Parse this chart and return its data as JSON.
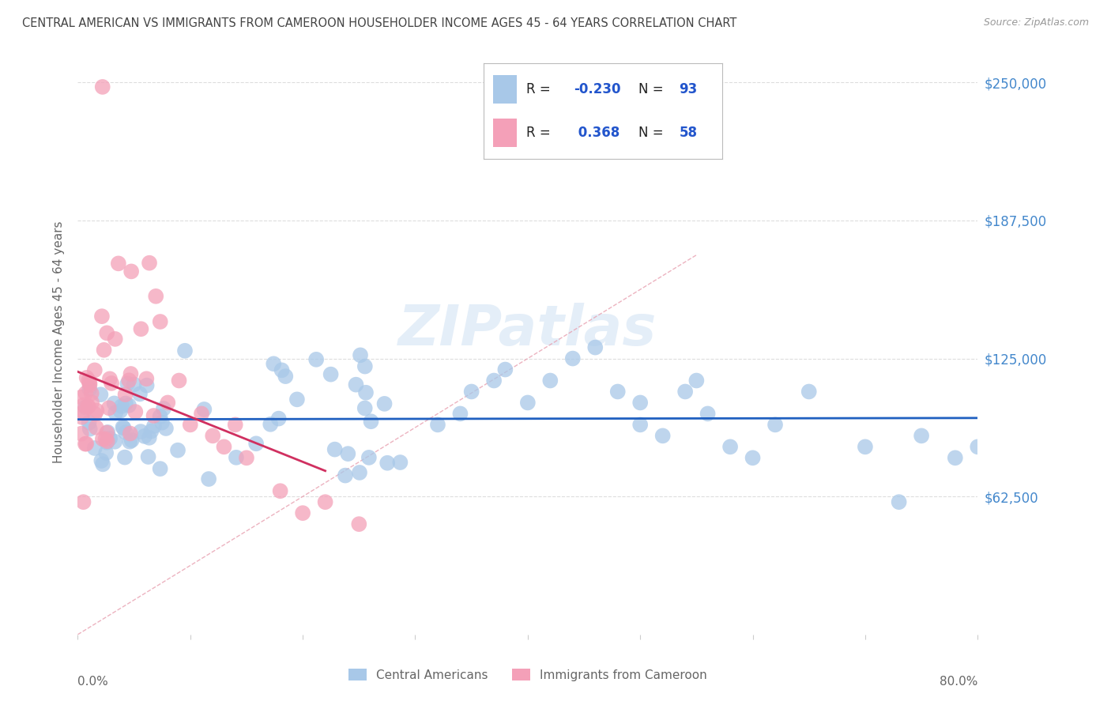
{
  "title": "CENTRAL AMERICAN VS IMMIGRANTS FROM CAMEROON HOUSEHOLDER INCOME AGES 45 - 64 YEARS CORRELATION CHART",
  "source": "Source: ZipAtlas.com",
  "ylabel": "Householder Income Ages 45 - 64 years",
  "ytick_labels": [
    "$62,500",
    "$125,000",
    "$187,500",
    "$250,000"
  ],
  "ytick_values": [
    62500,
    125000,
    187500,
    250000
  ],
  "xmin": 0.0,
  "xmax": 0.8,
  "ymin": 0,
  "ymax": 265000,
  "watermark": "ZIPatlas",
  "blue_color": "#a8c8e8",
  "pink_color": "#f4a0b8",
  "blue_line_color": "#2060c0",
  "pink_line_color": "#d03060",
  "diag_line_color": "#e8a0b0",
  "title_color": "#444444",
  "axis_label_color": "#666666",
  "ytick_color": "#4488cc",
  "legend_R_color": "#222222",
  "legend_val_color": "#2255cc",
  "grid_color": "#dddddd",
  "background_color": "#ffffff",
  "legend_box_color": "#eeeeee",
  "source_color": "#999999"
}
